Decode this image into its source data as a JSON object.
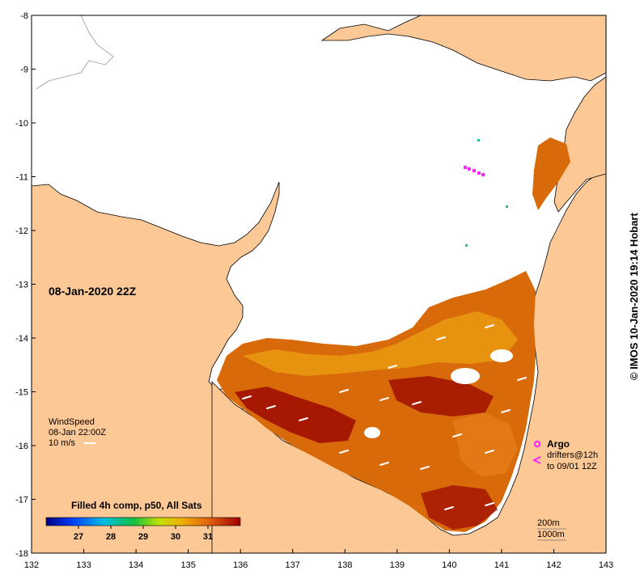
{
  "map": {
    "timestamp_label": "08-Jan-2020 22Z",
    "lon_ticks": [
      "132",
      "133",
      "134",
      "135",
      "136",
      "137",
      "138",
      "139",
      "140",
      "141",
      "142",
      "143"
    ],
    "lat_ticks": [
      "-8",
      "-9",
      "-10",
      "-11",
      "-12",
      "-13",
      "-14",
      "-15",
      "-16",
      "-17",
      "-18"
    ],
    "lon_range": [
      132,
      143
    ],
    "lat_range": [
      -18,
      -8
    ],
    "colors": {
      "land": "#fbc896",
      "cloud": "#ffffff",
      "sst_hot": "#a01000",
      "sst_mid": "#d96a0a",
      "sst_warm": "#e99a12",
      "argo": "#ff22ff"
    }
  },
  "wind": {
    "title": "WindSpeed",
    "time": "08-Jan 22:00Z",
    "scale": "10 m/s"
  },
  "colorbar": {
    "title": "Filled 4h comp, p50, All Sats",
    "ticks": [
      "27",
      "28",
      "29",
      "30",
      "31"
    ],
    "range": [
      26,
      32
    ]
  },
  "argo_legend": {
    "argo_label": "Argo",
    "drifters_label": "drifters@12h",
    "drifters_sub": "to 09/01 12Z"
  },
  "depth_legend": {
    "contour_200": "200m",
    "contour_1000": "1000m"
  },
  "credit": "© IMOS 10-Jan-2020 19:14 Hobart"
}
